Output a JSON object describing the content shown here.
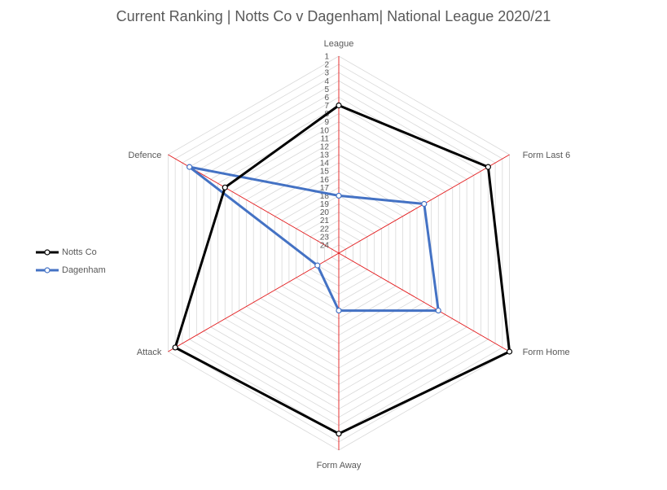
{
  "chart_data": {
    "type": "radar",
    "title": "Current Ranking | Notts Co v Dagenham| National League 2020/21",
    "axes": [
      "League",
      "Form Last 6",
      "Form Home",
      "Form Away",
      "Attack",
      "Defence"
    ],
    "scale": {
      "min": 1,
      "max": 24,
      "reversed": true,
      "ticks": [
        1,
        2,
        3,
        4,
        5,
        6,
        7,
        8,
        9,
        10,
        11,
        12,
        13,
        14,
        15,
        16,
        17,
        18,
        19,
        20,
        21,
        22,
        23,
        24
      ]
    },
    "series": [
      {
        "name": "Notts Co",
        "color": "#000000",
        "values": [
          7,
          4,
          1,
          3,
          2,
          9
        ]
      },
      {
        "name": "Dagenham",
        "color": "#4472c4",
        "values": [
          18,
          13,
          11,
          18,
          22,
          4
        ]
      }
    ],
    "grid": true,
    "spoke_color": "#e31a1c",
    "grid_color": "#d9d9d9",
    "legend": "left"
  }
}
